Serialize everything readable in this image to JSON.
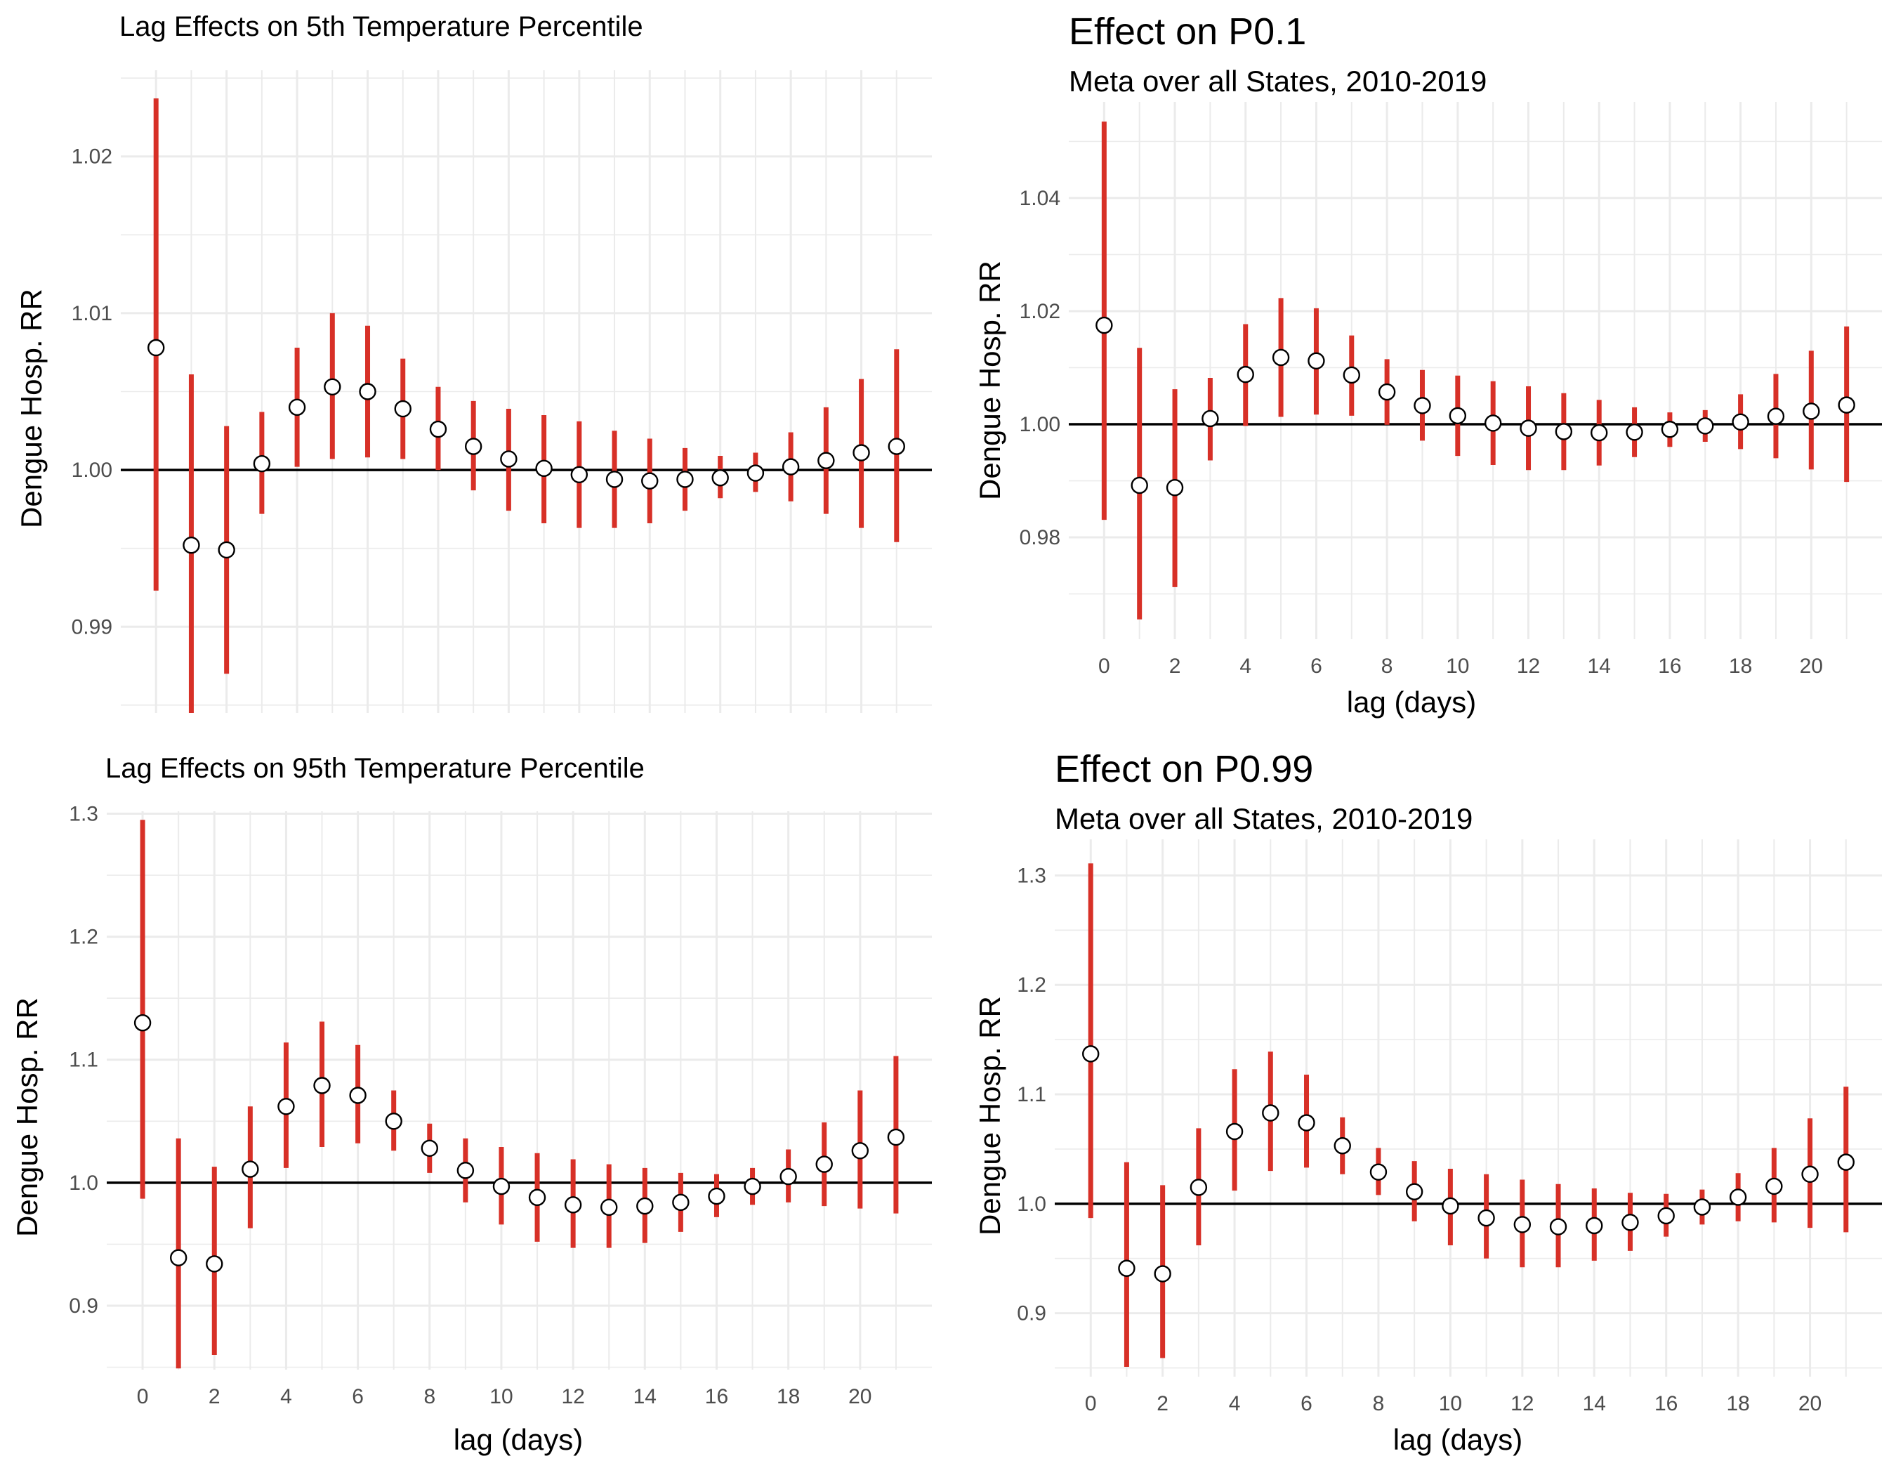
{
  "chart_data": [
    {
      "type": "scatter",
      "title": "Lag Effects on 5th Temperature Percentile",
      "subtitle": "",
      "xlabel": "",
      "ylabel": "Dengue Hosp. RR",
      "show_x_ticks": false,
      "x_ticks": [],
      "y_ticks": [
        0.99,
        1.0,
        1.01,
        1.02
      ],
      "y_tick_labels": [
        "0.99",
        "1.00",
        "1.01",
        "1.02"
      ],
      "xlim": [
        -1,
        22
      ],
      "ylim": [
        0.9845,
        1.0255
      ],
      "reference_line": 1.0,
      "point_color": "#ffffff",
      "interval_color": "#d73027",
      "x": [
        0,
        1,
        2,
        3,
        4,
        5,
        6,
        7,
        8,
        9,
        10,
        11,
        12,
        13,
        14,
        15,
        16,
        17,
        18,
        19,
        20,
        21
      ],
      "estimate": [
        1.0078,
        0.9952,
        0.9949,
        1.0004,
        1.004,
        1.0053,
        1.005,
        1.0039,
        1.0026,
        1.0015,
        1.0007,
        1.0001,
        0.9997,
        0.9994,
        0.9993,
        0.9994,
        0.9995,
        0.9998,
        1.0002,
        1.0006,
        1.0011,
        1.0015
      ],
      "lower": [
        0.9923,
        0.9845,
        0.987,
        0.9972,
        1.0002,
        1.0007,
        1.0008,
        1.0007,
        1.0,
        0.9987,
        0.9974,
        0.9966,
        0.9963,
        0.9963,
        0.9966,
        0.9974,
        0.9982,
        0.9986,
        0.998,
        0.9972,
        0.9963,
        0.9954
      ],
      "upper": [
        1.0237,
        1.0061,
        1.0028,
        1.0037,
        1.0078,
        1.01,
        1.0092,
        1.0071,
        1.0053,
        1.0044,
        1.0039,
        1.0035,
        1.0031,
        1.0025,
        1.002,
        1.0014,
        1.0009,
        1.0011,
        1.0024,
        1.004,
        1.0058,
        1.0077
      ]
    },
    {
      "type": "scatter",
      "title": "Effect on P0.1",
      "subtitle": "Meta over all States, 2010-2019",
      "xlabel": "lag (days)",
      "ylabel": "Dengue Hosp. RR",
      "show_x_ticks": true,
      "x_ticks": [
        0,
        2,
        4,
        6,
        8,
        10,
        12,
        14,
        16,
        18,
        20
      ],
      "y_ticks": [
        0.98,
        1.0,
        1.02,
        1.04
      ],
      "y_tick_labels": [
        "0.98",
        "1.00",
        "1.02",
        "1.04"
      ],
      "xlim": [
        -1,
        22
      ],
      "ylim": [
        0.962,
        1.057
      ],
      "reference_line": 1.0,
      "point_color": "#ffffff",
      "interval_color": "#d73027",
      "x": [
        0,
        1,
        2,
        3,
        4,
        5,
        6,
        7,
        8,
        9,
        10,
        11,
        12,
        13,
        14,
        15,
        16,
        17,
        18,
        19,
        20,
        21
      ],
      "estimate": [
        1.0175,
        0.9892,
        0.9888,
        1.001,
        1.0088,
        1.0118,
        1.0112,
        1.0087,
        1.0057,
        1.0033,
        1.0015,
        1.0002,
        0.9993,
        0.9987,
        0.9985,
        0.9986,
        0.9991,
        0.9997,
        1.0004,
        1.0014,
        1.0023,
        1.0034
      ],
      "lower": [
        0.9831,
        0.9655,
        0.9712,
        0.9936,
        0.9997,
        1.0013,
        1.0017,
        1.0015,
        0.9999,
        0.9971,
        0.9944,
        0.9928,
        0.9919,
        0.9919,
        0.9927,
        0.9942,
        0.996,
        0.9969,
        0.9956,
        0.994,
        0.992,
        0.9898
      ],
      "upper": [
        1.0535,
        1.0135,
        1.0062,
        1.0082,
        1.0177,
        1.0223,
        1.0205,
        1.0157,
        1.0115,
        1.0096,
        1.0086,
        1.0076,
        1.0067,
        1.0055,
        1.0043,
        1.003,
        1.0021,
        1.0025,
        1.0053,
        1.0089,
        1.013,
        1.0173
      ]
    },
    {
      "type": "scatter",
      "title": "Lag Effects on 95th Temperature Percentile",
      "subtitle": "",
      "xlabel": "lag (days)",
      "ylabel": "Dengue Hosp. RR",
      "show_x_ticks": true,
      "x_ticks": [
        0,
        2,
        4,
        6,
        8,
        10,
        12,
        14,
        16,
        18,
        20
      ],
      "y_ticks": [
        0.9,
        1.0,
        1.1,
        1.2,
        1.3
      ],
      "y_tick_labels": [
        "0.9",
        "1.0",
        "1.1",
        "1.2",
        "1.3"
      ],
      "xlim": [
        -1,
        22
      ],
      "ylim": [
        0.848,
        1.302
      ],
      "reference_line": 1.0,
      "point_color": "#ffffff",
      "interval_color": "#d73027",
      "x": [
        0,
        1,
        2,
        3,
        4,
        5,
        6,
        7,
        8,
        9,
        10,
        11,
        12,
        13,
        14,
        15,
        16,
        17,
        18,
        19,
        20,
        21
      ],
      "estimate": [
        1.13,
        0.939,
        0.934,
        1.011,
        1.062,
        1.079,
        1.071,
        1.05,
        1.028,
        1.01,
        0.997,
        0.988,
        0.982,
        0.98,
        0.981,
        0.984,
        0.989,
        0.997,
        1.005,
        1.015,
        1.026,
        1.037
      ],
      "lower": [
        0.987,
        0.849,
        0.86,
        0.963,
        1.012,
        1.029,
        1.032,
        1.026,
        1.008,
        0.984,
        0.966,
        0.952,
        0.947,
        0.947,
        0.951,
        0.96,
        0.972,
        0.982,
        0.984,
        0.981,
        0.979,
        0.975
      ],
      "upper": [
        1.295,
        1.036,
        1.013,
        1.062,
        1.114,
        1.131,
        1.112,
        1.075,
        1.048,
        1.036,
        1.029,
        1.024,
        1.019,
        1.015,
        1.012,
        1.008,
        1.007,
        1.012,
        1.027,
        1.049,
        1.075,
        1.103
      ]
    },
    {
      "type": "scatter",
      "title": "Effect on P0.99",
      "subtitle": "Meta over all States, 2010-2019",
      "xlabel": "lag (days)",
      "ylabel": "Dengue Hosp. RR",
      "show_x_ticks": true,
      "x_ticks": [
        0,
        2,
        4,
        6,
        8,
        10,
        12,
        14,
        16,
        18,
        20
      ],
      "y_ticks": [
        0.9,
        1.0,
        1.1,
        1.2,
        1.3
      ],
      "y_tick_labels": [
        "0.9",
        "1.0",
        "1.1",
        "1.2",
        "1.3"
      ],
      "xlim": [
        -1,
        22
      ],
      "ylim": [
        0.842,
        1.333
      ],
      "reference_line": 1.0,
      "point_color": "#ffffff",
      "interval_color": "#d73027",
      "x": [
        0,
        1,
        2,
        3,
        4,
        5,
        6,
        7,
        8,
        9,
        10,
        11,
        12,
        13,
        14,
        15,
        16,
        17,
        18,
        19,
        20,
        21
      ],
      "estimate": [
        1.137,
        0.941,
        0.936,
        1.015,
        1.066,
        1.083,
        1.074,
        1.053,
        1.029,
        1.011,
        0.998,
        0.987,
        0.981,
        0.979,
        0.98,
        0.983,
        0.989,
        0.997,
        1.006,
        1.016,
        1.027,
        1.038
      ],
      "lower": [
        0.987,
        0.851,
        0.859,
        0.962,
        1.012,
        1.03,
        1.033,
        1.027,
        1.008,
        0.984,
        0.962,
        0.95,
        0.942,
        0.942,
        0.948,
        0.957,
        0.97,
        0.981,
        0.984,
        0.983,
        0.978,
        0.974
      ],
      "upper": [
        1.311,
        1.038,
        1.017,
        1.069,
        1.123,
        1.139,
        1.118,
        1.079,
        1.051,
        1.039,
        1.032,
        1.027,
        1.022,
        1.018,
        1.014,
        1.01,
        1.009,
        1.013,
        1.028,
        1.051,
        1.078,
        1.107
      ]
    }
  ]
}
